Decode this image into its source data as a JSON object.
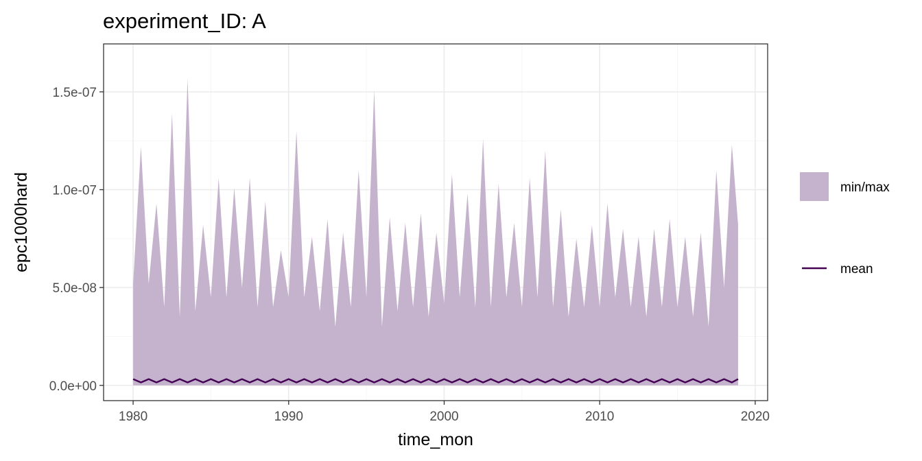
{
  "chart_data": {
    "type": "area",
    "title": "experiment_ID: A",
    "xlabel": "time_mon",
    "ylabel": "epc1000hard",
    "xlim": [
      1978.1,
      2020.8
    ],
    "ylim": [
      -7.8e-09,
      1.745e-07
    ],
    "x_ticks": [
      {
        "value": 1980,
        "label": "1980"
      },
      {
        "value": 1990,
        "label": "1990"
      },
      {
        "value": 2000,
        "label": "2000"
      },
      {
        "value": 2010,
        "label": "2010"
      },
      {
        "value": 2020,
        "label": "2020"
      }
    ],
    "y_ticks": [
      {
        "value": 0,
        "label": "0.0e+00"
      },
      {
        "value": 5e-08,
        "label": "5.0e-08"
      },
      {
        "value": 1e-07,
        "label": "1.0e-07"
      },
      {
        "value": 1.5e-07,
        "label": "1.5e-07"
      }
    ],
    "grid": true,
    "legend_position": "right",
    "colors": {
      "ribbon": "#c5b3cd",
      "mean": "#440154",
      "panel_border": "#333333",
      "grid_major": "#ebebeb",
      "grid_minor": "#f5f5f5"
    },
    "series": [
      {
        "name": "min/max",
        "kind": "ribbon",
        "x": [
          1980.0,
          1980.5,
          1981.0,
          1981.5,
          1982.0,
          1982.5,
          1983.0,
          1983.5,
          1984.0,
          1984.5,
          1985.0,
          1985.5,
          1986.0,
          1986.5,
          1987.0,
          1987.5,
          1988.0,
          1988.5,
          1989.0,
          1989.5,
          1990.0,
          1990.5,
          1991.0,
          1991.5,
          1992.0,
          1992.5,
          1993.0,
          1993.5,
          1994.0,
          1994.5,
          1995.0,
          1995.5,
          1996.0,
          1996.5,
          1997.0,
          1997.5,
          1998.0,
          1998.5,
          1999.0,
          1999.5,
          2000.0,
          2000.5,
          2001.0,
          2001.5,
          2002.0,
          2002.5,
          2003.0,
          2003.5,
          2004.0,
          2004.5,
          2005.0,
          2005.5,
          2006.0,
          2006.5,
          2007.0,
          2007.5,
          2008.0,
          2008.5,
          2009.0,
          2009.5,
          2010.0,
          2010.5,
          2011.0,
          2011.5,
          2012.0,
          2012.5,
          2013.0,
          2013.5,
          2014.0,
          2014.5,
          2015.0,
          2015.5,
          2016.0,
          2016.5,
          2017.0,
          2017.5,
          2018.0,
          2018.5,
          2018.9
        ],
        "ymin": [
          0,
          0,
          0,
          0,
          0,
          0,
          0,
          0,
          0,
          0,
          0,
          0,
          0,
          0,
          0,
          0,
          0,
          0,
          0,
          0,
          0,
          0,
          0,
          0,
          0,
          0,
          0,
          0,
          0,
          0,
          0,
          0,
          0,
          0,
          0,
          0,
          0,
          0,
          0,
          0,
          0,
          0,
          0,
          0,
          0,
          0,
          0,
          0,
          0,
          0,
          0,
          0,
          0,
          0,
          0,
          0,
          0,
          0,
          0,
          0,
          0,
          0,
          0,
          0,
          0,
          0,
          0,
          0,
          0,
          0,
          0,
          0,
          0,
          0,
          0,
          0,
          0,
          0,
          0
        ],
        "ymax": [
          5.2e-08,
          1.22e-07,
          5.2e-08,
          9.3e-08,
          4e-08,
          1.39e-07,
          3.5e-08,
          1.57e-07,
          3.8e-08,
          8.2e-08,
          4.5e-08,
          1.06e-07,
          4.5e-08,
          1.01e-07,
          5e-08,
          1.06e-07,
          4e-08,
          9.4e-08,
          4e-08,
          6.9e-08,
          4.5e-08,
          1.3e-07,
          4.5e-08,
          7.6e-08,
          3.8e-08,
          8.5e-08,
          3e-08,
          7.8e-08,
          4e-08,
          1.1e-07,
          4.5e-08,
          1.51e-07,
          3e-08,
          8.6e-08,
          3.8e-08,
          8.3e-08,
          4e-08,
          8.8e-08,
          3.5e-08,
          7.8e-08,
          4.2e-08,
          1.08e-07,
          4.5e-08,
          9.8e-08,
          4e-08,
          1.26e-07,
          4e-08,
          1.03e-07,
          4.5e-08,
          8.3e-08,
          4e-08,
          1.06e-07,
          4.5e-08,
          1.2e-07,
          4e-08,
          9e-08,
          3.5e-08,
          7.5e-08,
          4e-08,
          8.2e-08,
          4e-08,
          9.3e-08,
          4.5e-08,
          8e-08,
          4e-08,
          7.6e-08,
          3.5e-08,
          8e-08,
          4e-08,
          8.5e-08,
          4e-08,
          7.6e-08,
          3.5e-08,
          7.8e-08,
          3e-08,
          1.1e-07,
          5e-08,
          1.23e-07,
          8.2e-08
        ]
      },
      {
        "name": "mean",
        "kind": "line",
        "x": [
          1980.0,
          1980.5,
          1981.0,
          1981.5,
          1982.0,
          1982.5,
          1983.0,
          1983.5,
          1984.0,
          1984.5,
          1985.0,
          1985.5,
          1986.0,
          1986.5,
          1987.0,
          1987.5,
          1988.0,
          1988.5,
          1989.0,
          1989.5,
          1990.0,
          1990.5,
          1991.0,
          1991.5,
          1992.0,
          1992.5,
          1993.0,
          1993.5,
          1994.0,
          1994.5,
          1995.0,
          1995.5,
          1996.0,
          1996.5,
          1997.0,
          1997.5,
          1998.0,
          1998.5,
          1999.0,
          1999.5,
          2000.0,
          2000.5,
          2001.0,
          2001.5,
          2002.0,
          2002.5,
          2003.0,
          2003.5,
          2004.0,
          2004.5,
          2005.0,
          2005.5,
          2006.0,
          2006.5,
          2007.0,
          2007.5,
          2008.0,
          2008.5,
          2009.0,
          2009.5,
          2010.0,
          2010.5,
          2011.0,
          2011.5,
          2012.0,
          2012.5,
          2013.0,
          2013.5,
          2014.0,
          2014.5,
          2015.0,
          2015.5,
          2016.0,
          2016.5,
          2017.0,
          2017.5,
          2018.0,
          2018.5,
          2018.9
        ],
        "y": [
          3.2e-09,
          1.5e-09,
          3.2e-09,
          1.5e-09,
          3.2e-09,
          1.5e-09,
          3.2e-09,
          1.5e-09,
          3.2e-09,
          1.5e-09,
          3.2e-09,
          1.5e-09,
          3.2e-09,
          1.5e-09,
          3.2e-09,
          1.5e-09,
          3.2e-09,
          1.5e-09,
          3.2e-09,
          1.5e-09,
          3.2e-09,
          1.5e-09,
          3.2e-09,
          1.5e-09,
          3.2e-09,
          1.5e-09,
          3.2e-09,
          1.5e-09,
          3.2e-09,
          1.5e-09,
          3.2e-09,
          1.5e-09,
          3.2e-09,
          1.5e-09,
          3.2e-09,
          1.5e-09,
          3.2e-09,
          1.5e-09,
          3.2e-09,
          1.5e-09,
          3.2e-09,
          1.5e-09,
          3.2e-09,
          1.5e-09,
          3.2e-09,
          1.5e-09,
          3.2e-09,
          1.5e-09,
          3.2e-09,
          1.5e-09,
          3.2e-09,
          1.5e-09,
          3.2e-09,
          1.5e-09,
          3.2e-09,
          1.5e-09,
          3.2e-09,
          1.5e-09,
          3.2e-09,
          1.5e-09,
          3.2e-09,
          1.5e-09,
          3.2e-09,
          1.5e-09,
          3.2e-09,
          1.5e-09,
          3.2e-09,
          1.5e-09,
          3.2e-09,
          1.5e-09,
          3.2e-09,
          1.5e-09,
          3.2e-09,
          1.5e-09,
          3.2e-09,
          1.5e-09,
          3.2e-09,
          1.5e-09,
          3.2e-09
        ]
      }
    ],
    "legend": [
      {
        "label": "min/max",
        "kind": "fill"
      },
      {
        "label": "mean",
        "kind": "line"
      }
    ]
  }
}
